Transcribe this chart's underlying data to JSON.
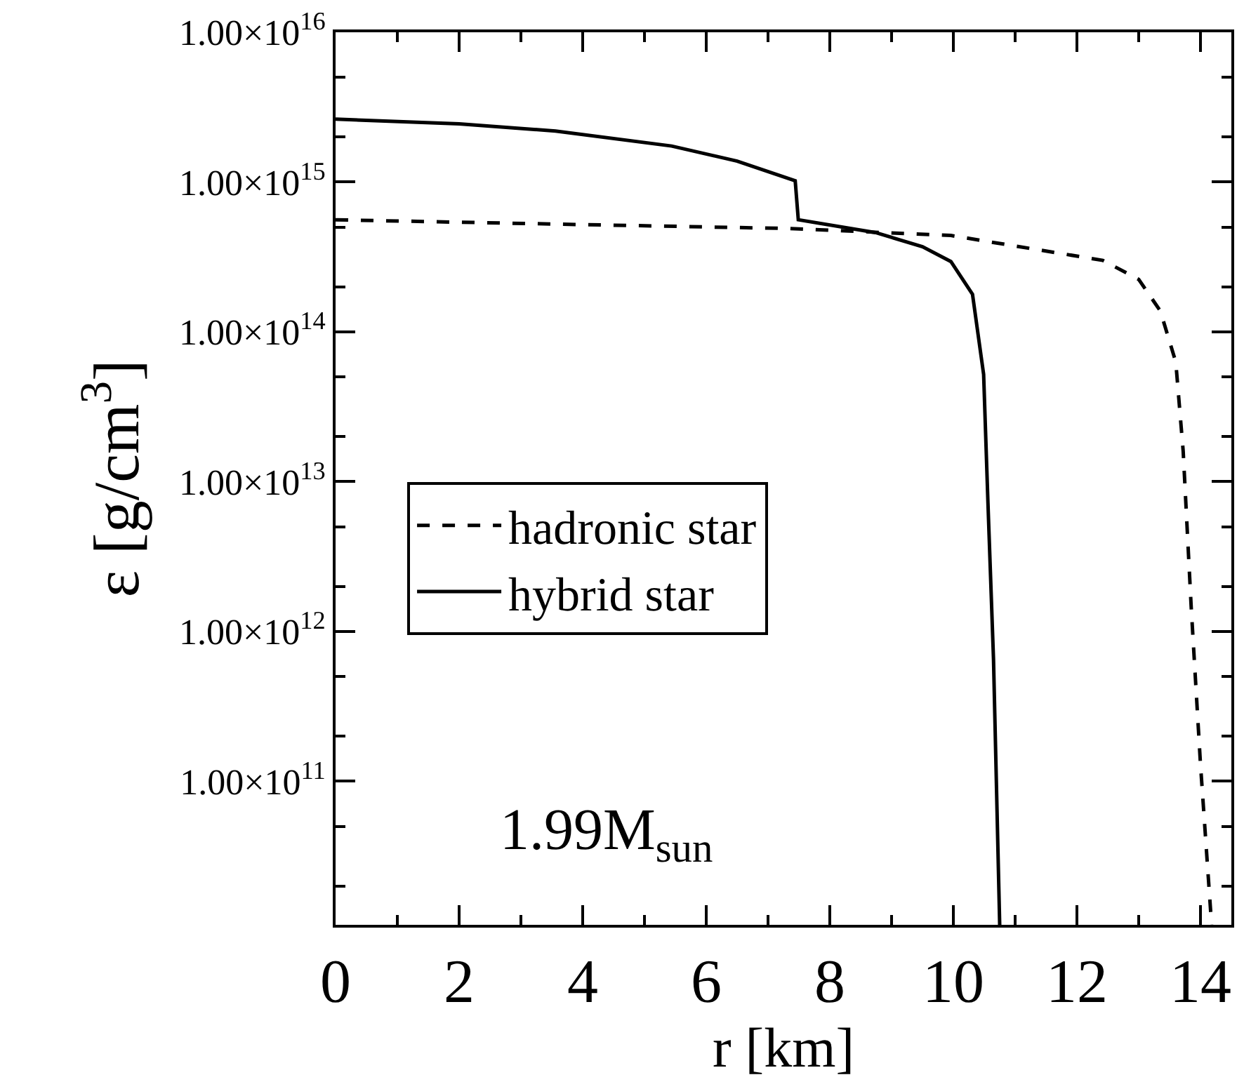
{
  "chart_data": {
    "type": "line",
    "xlabel": "r [km]",
    "ylabel": "ε [g/cm$^{3}$]",
    "log": "y",
    "grid": false,
    "legend": "left",
    "marker": "none",
    "xlim": [
      0,
      14.5
    ],
    "xticks": [
      0,
      2,
      4,
      6,
      8,
      10,
      12,
      14
    ],
    "ylim": [
      11000000000.0,
      1e+16
    ],
    "yticks": [
      {
        "value": 100000000000.0,
        "label": "1.00×10$^{11}$"
      },
      {
        "value": 1000000000000.0,
        "label": "1.00×10$^{12}$"
      },
      {
        "value": 10000000000000.0,
        "label": "1.00×10$^{13}$"
      },
      {
        "value": 100000000000000.0,
        "label": "1.00×10$^{14}$"
      },
      {
        "value": 1000000000000000.0,
        "label": "1.00×10$^{15}$"
      },
      {
        "value": 1e+16,
        "label": "1.00×10$^{16}$"
      }
    ],
    "annotations": [
      "1.99M$_{sun}$"
    ],
    "series": [
      {
        "name": "hadronic star",
        "color": "#000000",
        "line_style": "dashed",
        "x": [
          0,
          4,
          7.33,
          9.96,
          12.42,
          13.0,
          13.35,
          13.6,
          13.72,
          13.85,
          14.0,
          14.18
        ],
        "values": [
          560000000000000.0,
          520000000000000.0,
          490000000000000.0,
          440000000000000.0,
          300000000000000.0,
          224000000000000.0,
          138000000000000.0,
          63000000000000.0,
          16000000000000.0,
          1450000000000.0,
          130000000000.0,
          11000000000.0
        ]
      },
      {
        "name": "hybrid star",
        "color": "#000000",
        "line_style": "solid",
        "x": [
          0,
          2,
          3.56,
          5.44,
          6.5,
          7.44,
          7.49,
          8.74,
          9.5,
          9.96,
          10.31,
          10.49,
          10.56,
          10.65,
          10.75
        ],
        "values": [
          2630000000000000.0,
          2450000000000000.0,
          2190000000000000.0,
          1740000000000000.0,
          1380000000000000.0,
          1020000000000000.0,
          560000000000000.0,
          460000000000000.0,
          370000000000000.0,
          295000000000000.0,
          178000000000000.0,
          52000000000000.0,
          7200000000000.0,
          650000000000.0,
          11000000000.0
        ]
      }
    ]
  }
}
